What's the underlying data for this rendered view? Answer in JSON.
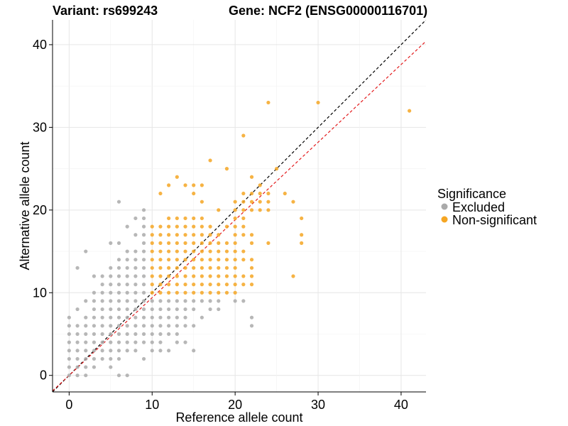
{
  "chart_data": {
    "type": "scatter",
    "title_left": "Variant: rs699243",
    "title_right": "Gene: NCF2 (ENSG00000116701)",
    "xlabel": "Reference allele count",
    "ylabel": "Alternative allele count",
    "xlim": [
      -2,
      43
    ],
    "ylim": [
      -2,
      43
    ],
    "xticks": [
      0,
      10,
      20,
      30,
      40
    ],
    "yticks": [
      0,
      10,
      20,
      30,
      40
    ],
    "grid": true,
    "legend": {
      "title": "Significance",
      "position": "right",
      "entries": [
        {
          "label": "Excluded",
          "color": "#aaaaaa"
        },
        {
          "label": "Non-significant",
          "color": "#f5a623"
        }
      ]
    },
    "reference_lines": [
      {
        "slope": 1.0,
        "intercept": 0,
        "color": "#000000",
        "style": "dashed"
      },
      {
        "slope": 0.94,
        "intercept": 0,
        "color": "#e31a1c",
        "style": "dashed"
      }
    ],
    "series": [
      {
        "name": "Excluded",
        "color": "#aaaaaa",
        "points": [
          [
            0,
            0
          ],
          [
            0,
            1
          ],
          [
            0,
            2
          ],
          [
            0,
            3
          ],
          [
            0,
            4
          ],
          [
            0,
            5
          ],
          [
            0,
            6
          ],
          [
            0,
            7
          ],
          [
            1,
            0
          ],
          [
            1,
            1
          ],
          [
            1,
            2
          ],
          [
            1,
            3
          ],
          [
            1,
            4
          ],
          [
            1,
            5
          ],
          [
            1,
            6
          ],
          [
            1,
            8
          ],
          [
            1,
            13
          ],
          [
            2,
            0
          ],
          [
            2,
            1
          ],
          [
            2,
            2
          ],
          [
            2,
            3
          ],
          [
            2,
            4
          ],
          [
            2,
            5
          ],
          [
            2,
            6
          ],
          [
            2,
            7
          ],
          [
            2,
            9
          ],
          [
            2,
            15
          ],
          [
            3,
            1
          ],
          [
            3,
            2
          ],
          [
            3,
            3
          ],
          [
            3,
            4
          ],
          [
            3,
            5
          ],
          [
            3,
            6
          ],
          [
            3,
            7
          ],
          [
            3,
            8
          ],
          [
            3,
            9
          ],
          [
            3,
            10
          ],
          [
            3,
            12
          ],
          [
            4,
            2
          ],
          [
            4,
            3
          ],
          [
            4,
            4
          ],
          [
            4,
            5
          ],
          [
            4,
            6
          ],
          [
            4,
            7
          ],
          [
            4,
            8
          ],
          [
            4,
            9
          ],
          [
            4,
            10
          ],
          [
            4,
            11
          ],
          [
            4,
            12
          ],
          [
            5,
            1
          ],
          [
            5,
            2
          ],
          [
            5,
            3
          ],
          [
            5,
            4
          ],
          [
            5,
            5
          ],
          [
            5,
            6
          ],
          [
            5,
            7
          ],
          [
            5,
            8
          ],
          [
            5,
            9
          ],
          [
            5,
            10
          ],
          [
            5,
            11
          ],
          [
            5,
            12
          ],
          [
            5,
            13
          ],
          [
            5,
            16
          ],
          [
            6,
            0
          ],
          [
            6,
            2
          ],
          [
            6,
            3
          ],
          [
            6,
            4
          ],
          [
            6,
            5
          ],
          [
            6,
            6
          ],
          [
            6,
            7
          ],
          [
            6,
            8
          ],
          [
            6,
            9
          ],
          [
            6,
            10
          ],
          [
            6,
            11
          ],
          [
            6,
            12
          ],
          [
            6,
            13
          ],
          [
            6,
            14
          ],
          [
            6,
            16
          ],
          [
            6,
            21
          ],
          [
            7,
            0
          ],
          [
            7,
            3
          ],
          [
            7,
            4
          ],
          [
            7,
            5
          ],
          [
            7,
            6
          ],
          [
            7,
            7
          ],
          [
            7,
            8
          ],
          [
            7,
            9
          ],
          [
            7,
            10
          ],
          [
            7,
            11
          ],
          [
            7,
            12
          ],
          [
            7,
            13
          ],
          [
            7,
            14
          ],
          [
            7,
            15
          ],
          [
            7,
            18
          ],
          [
            8,
            3
          ],
          [
            8,
            4
          ],
          [
            8,
            5
          ],
          [
            8,
            6
          ],
          [
            8,
            7
          ],
          [
            8,
            8
          ],
          [
            8,
            9
          ],
          [
            8,
            10
          ],
          [
            8,
            11
          ],
          [
            8,
            12
          ],
          [
            8,
            13
          ],
          [
            8,
            14
          ],
          [
            8,
            15
          ],
          [
            8,
            17
          ],
          [
            8,
            19
          ],
          [
            9,
            2
          ],
          [
            9,
            4
          ],
          [
            9,
            5
          ],
          [
            9,
            6
          ],
          [
            9,
            7
          ],
          [
            9,
            8
          ],
          [
            9,
            9
          ],
          [
            9,
            10
          ],
          [
            9,
            11
          ],
          [
            9,
            12
          ],
          [
            9,
            13
          ],
          [
            9,
            14
          ],
          [
            9,
            15
          ],
          [
            9,
            16
          ],
          [
            9,
            17
          ],
          [
            9,
            18
          ],
          [
            9,
            19
          ],
          [
            9,
            20
          ],
          [
            10,
            3
          ],
          [
            10,
            4
          ],
          [
            10,
            5
          ],
          [
            10,
            6
          ],
          [
            10,
            7
          ],
          [
            10,
            8
          ],
          [
            10,
            9
          ],
          [
            11,
            3
          ],
          [
            11,
            4
          ],
          [
            11,
            5
          ],
          [
            11,
            6
          ],
          [
            11,
            7
          ],
          [
            11,
            8
          ],
          [
            11,
            9
          ],
          [
            12,
            3
          ],
          [
            12,
            5
          ],
          [
            12,
            6
          ],
          [
            12,
            7
          ],
          [
            12,
            8
          ],
          [
            12,
            9
          ],
          [
            13,
            4
          ],
          [
            13,
            5
          ],
          [
            13,
            6
          ],
          [
            13,
            7
          ],
          [
            13,
            8
          ],
          [
            13,
            9
          ],
          [
            14,
            4
          ],
          [
            14,
            6
          ],
          [
            14,
            7
          ],
          [
            14,
            8
          ],
          [
            14,
            9
          ],
          [
            15,
            3
          ],
          [
            15,
            6
          ],
          [
            15,
            8
          ],
          [
            15,
            9
          ],
          [
            16,
            7
          ],
          [
            16,
            9
          ],
          [
            17,
            8
          ],
          [
            17,
            9
          ],
          [
            18,
            8
          ],
          [
            18,
            9
          ],
          [
            20,
            9
          ],
          [
            21,
            9
          ],
          [
            22,
            6
          ],
          [
            22,
            7
          ]
        ]
      },
      {
        "name": "Non-significant",
        "color": "#f5a623",
        "points": [
          [
            10,
            10
          ],
          [
            10,
            11
          ],
          [
            10,
            12
          ],
          [
            10,
            13
          ],
          [
            10,
            14
          ],
          [
            10,
            15
          ],
          [
            10,
            16
          ],
          [
            10,
            17
          ],
          [
            10,
            18
          ],
          [
            11,
            10
          ],
          [
            11,
            11
          ],
          [
            11,
            12
          ],
          [
            11,
            13
          ],
          [
            11,
            14
          ],
          [
            11,
            15
          ],
          [
            11,
            16
          ],
          [
            11,
            17
          ],
          [
            11,
            18
          ],
          [
            11,
            22
          ],
          [
            12,
            10
          ],
          [
            12,
            11
          ],
          [
            12,
            12
          ],
          [
            12,
            13
          ],
          [
            12,
            14
          ],
          [
            12,
            15
          ],
          [
            12,
            16
          ],
          [
            12,
            17
          ],
          [
            12,
            18
          ],
          [
            12,
            19
          ],
          [
            12,
            23
          ],
          [
            13,
            10
          ],
          [
            13,
            11
          ],
          [
            13,
            12
          ],
          [
            13,
            13
          ],
          [
            13,
            14
          ],
          [
            13,
            15
          ],
          [
            13,
            16
          ],
          [
            13,
            17
          ],
          [
            13,
            18
          ],
          [
            13,
            19
          ],
          [
            13,
            24
          ],
          [
            14,
            10
          ],
          [
            14,
            11
          ],
          [
            14,
            12
          ],
          [
            14,
            13
          ],
          [
            14,
            14
          ],
          [
            14,
            15
          ],
          [
            14,
            16
          ],
          [
            14,
            17
          ],
          [
            14,
            18
          ],
          [
            14,
            19
          ],
          [
            14,
            23
          ],
          [
            15,
            10
          ],
          [
            15,
            11
          ],
          [
            15,
            12
          ],
          [
            15,
            13
          ],
          [
            15,
            14
          ],
          [
            15,
            15
          ],
          [
            15,
            16
          ],
          [
            15,
            17
          ],
          [
            15,
            18
          ],
          [
            15,
            19
          ],
          [
            15,
            22
          ],
          [
            15,
            23
          ],
          [
            16,
            10
          ],
          [
            16,
            11
          ],
          [
            16,
            12
          ],
          [
            16,
            13
          ],
          [
            16,
            14
          ],
          [
            16,
            15
          ],
          [
            16,
            16
          ],
          [
            16,
            17
          ],
          [
            16,
            18
          ],
          [
            16,
            19
          ],
          [
            16,
            21
          ],
          [
            16,
            23
          ],
          [
            17,
            10
          ],
          [
            17,
            11
          ],
          [
            17,
            12
          ],
          [
            17,
            13
          ],
          [
            17,
            14
          ],
          [
            17,
            15
          ],
          [
            17,
            16
          ],
          [
            17,
            17
          ],
          [
            17,
            18
          ],
          [
            17,
            26
          ],
          [
            18,
            10
          ],
          [
            18,
            11
          ],
          [
            18,
            12
          ],
          [
            18,
            13
          ],
          [
            18,
            14
          ],
          [
            18,
            15
          ],
          [
            18,
            16
          ],
          [
            18,
            17
          ],
          [
            18,
            20
          ],
          [
            19,
            10
          ],
          [
            19,
            11
          ],
          [
            19,
            12
          ],
          [
            19,
            13
          ],
          [
            19,
            14
          ],
          [
            19,
            15
          ],
          [
            19,
            16
          ],
          [
            19,
            18
          ],
          [
            19,
            25
          ],
          [
            20,
            10
          ],
          [
            20,
            11
          ],
          [
            20,
            12
          ],
          [
            20,
            13
          ],
          [
            20,
            14
          ],
          [
            20,
            15
          ],
          [
            20,
            16
          ],
          [
            20,
            17
          ],
          [
            20,
            18
          ],
          [
            20,
            19
          ],
          [
            20,
            20
          ],
          [
            20,
            21
          ],
          [
            21,
            11
          ],
          [
            21,
            12
          ],
          [
            21,
            14
          ],
          [
            21,
            15
          ],
          [
            21,
            17
          ],
          [
            21,
            18
          ],
          [
            21,
            19
          ],
          [
            21,
            20
          ],
          [
            21,
            21
          ],
          [
            21,
            22
          ],
          [
            21,
            29
          ],
          [
            22,
            11
          ],
          [
            22,
            12
          ],
          [
            22,
            13
          ],
          [
            22,
            14
          ],
          [
            22,
            16
          ],
          [
            22,
            17
          ],
          [
            22,
            20
          ],
          [
            22,
            21
          ],
          [
            22,
            22
          ],
          [
            22,
            24
          ],
          [
            23,
            20
          ],
          [
            23,
            21
          ],
          [
            23,
            22
          ],
          [
            23,
            23
          ],
          [
            24,
            16
          ],
          [
            24,
            20
          ],
          [
            24,
            21
          ],
          [
            24,
            22
          ],
          [
            24,
            33
          ],
          [
            25,
            25
          ],
          [
            26,
            22
          ],
          [
            27,
            12
          ],
          [
            27,
            21
          ],
          [
            28,
            16
          ],
          [
            28,
            17
          ],
          [
            28,
            19
          ],
          [
            30,
            33
          ],
          [
            41,
            32
          ]
        ]
      }
    ]
  }
}
